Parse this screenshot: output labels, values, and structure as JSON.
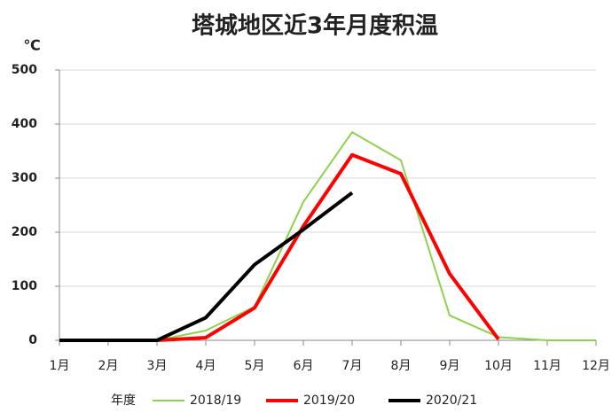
{
  "chart_data": {
    "type": "line",
    "title": "塔城地区近3年月度积温",
    "y_unit": "℃",
    "categories": [
      "1月",
      "2月",
      "3月",
      "4月",
      "5月",
      "6月",
      "7月",
      "8月",
      "9月",
      "10月",
      "11月",
      "12月"
    ],
    "series": [
      {
        "name": "2018/19",
        "color": "#8fd14f",
        "values": [
          0,
          0,
          0,
          18,
          62,
          256,
          385,
          333,
          46,
          6,
          0,
          0
        ]
      },
      {
        "name": "2019/20",
        "color": "#ff0000",
        "values": [
          0,
          0,
          0,
          5,
          60,
          211,
          343,
          308,
          123,
          2,
          null,
          null
        ]
      },
      {
        "name": "2020/21",
        "color": "#000000",
        "values": [
          0,
          0,
          0,
          42,
          140,
          205,
          273,
          null,
          null,
          null,
          null,
          null
        ]
      }
    ],
    "legend_title": "年度",
    "ylim": [
      0,
      500
    ],
    "yticks": [
      0,
      100,
      200,
      300,
      400,
      500
    ],
    "grid": true
  }
}
